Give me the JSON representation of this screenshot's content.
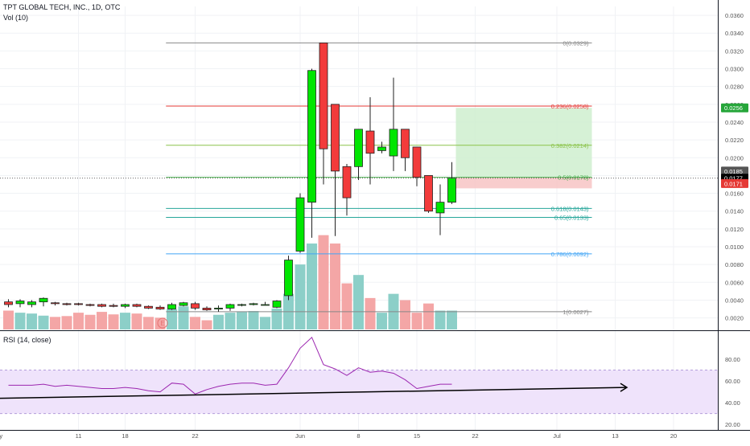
{
  "header": {
    "symbol_line": "TPT GLOBAL TECH, INC., 1D, OTC",
    "volume_indicator": "Vol (10)",
    "rsi_indicator": "RSI (14, close)"
  },
  "colors": {
    "up": "#00e600",
    "down": "#f23b3b",
    "volume_up": "#8ccfc8",
    "volume_down": "#f4a6a6",
    "rsi_line": "#9c27b0",
    "rsi_band": "#efe3fb",
    "fib_0": "#888888",
    "fib_236": "#e53935",
    "fib_382": "#8bc34a",
    "fib_5": "#4caf50",
    "fib_618": "#26a69a",
    "fib_65": "#26a69a",
    "fib_786": "#42a5f5",
    "fib_1": "#888888",
    "target_zone": "#cfeecf",
    "stop_zone": "#f7c4c4",
    "badge_green": "#26a63a",
    "badge_black": "#000000",
    "badge_red": "#e53935",
    "badge_gray": "#555555"
  },
  "chart_data": [
    {
      "type": "candlestick",
      "candles": [
        {
          "day": 0,
          "o": 0.0038,
          "h": 0.0041,
          "l": 0.0032,
          "c": 0.0035
        },
        {
          "day": 1,
          "o": 0.0036,
          "h": 0.0041,
          "l": 0.0032,
          "c": 0.0039
        },
        {
          "day": 2,
          "o": 0.0035,
          "h": 0.004,
          "l": 0.0032,
          "c": 0.0038
        },
        {
          "day": 3,
          "o": 0.0038,
          "h": 0.0043,
          "l": 0.0033,
          "c": 0.0042
        },
        {
          "day": 4,
          "o": 0.0037,
          "h": 0.0038,
          "l": 0.0034,
          "c": 0.0036
        },
        {
          "day": 5,
          "o": 0.0036,
          "h": 0.0037,
          "l": 0.0034,
          "c": 0.0035
        },
        {
          "day": 6,
          "o": 0.0036,
          "h": 0.0037,
          "l": 0.0034,
          "c": 0.0035
        },
        {
          "day": 7,
          "o": 0.0035,
          "h": 0.0036,
          "l": 0.0033,
          "c": 0.0034
        },
        {
          "day": 8,
          "o": 0.0035,
          "h": 0.0036,
          "l": 0.0032,
          "c": 0.0033
        },
        {
          "day": 9,
          "o": 0.0034,
          "h": 0.0036,
          "l": 0.0032,
          "c": 0.0033
        },
        {
          "day": 10,
          "o": 0.0033,
          "h": 0.0036,
          "l": 0.0031,
          "c": 0.0035
        },
        {
          "day": 11,
          "o": 0.0035,
          "h": 0.0036,
          "l": 0.0032,
          "c": 0.0033
        },
        {
          "day": 12,
          "o": 0.0033,
          "h": 0.0034,
          "l": 0.003,
          "c": 0.0031
        },
        {
          "day": 13,
          "o": 0.0032,
          "h": 0.0034,
          "l": 0.0029,
          "c": 0.003
        },
        {
          "day": 14,
          "o": 0.003,
          "h": 0.0037,
          "l": 0.0029,
          "c": 0.0035
        },
        {
          "day": 15,
          "o": 0.0034,
          "h": 0.0038,
          "l": 0.0033,
          "c": 0.0037
        },
        {
          "day": 16,
          "o": 0.0036,
          "h": 0.0038,
          "l": 0.0029,
          "c": 0.0031
        },
        {
          "day": 17,
          "o": 0.0031,
          "h": 0.0033,
          "l": 0.0028,
          "c": 0.0029
        },
        {
          "day": 18,
          "o": 0.003,
          "h": 0.0034,
          "l": 0.0027,
          "c": 0.0031
        },
        {
          "day": 19,
          "o": 0.0031,
          "h": 0.0036,
          "l": 0.0028,
          "c": 0.0035
        },
        {
          "day": 20,
          "o": 0.0035,
          "h": 0.0036,
          "l": 0.0033,
          "c": 0.0035
        },
        {
          "day": 21,
          "o": 0.0035,
          "h": 0.0037,
          "l": 0.0034,
          "c": 0.0036
        },
        {
          "day": 22,
          "o": 0.0035,
          "h": 0.0038,
          "l": 0.0034,
          "c": 0.0035
        },
        {
          "day": 23,
          "o": 0.0032,
          "h": 0.004,
          "l": 0.0031,
          "c": 0.0039
        },
        {
          "day": 24,
          "o": 0.0045,
          "h": 0.009,
          "l": 0.004,
          "c": 0.0085
        },
        {
          "day": 25,
          "o": 0.0095,
          "h": 0.016,
          "l": 0.0093,
          "c": 0.0155
        },
        {
          "day": 26,
          "o": 0.015,
          "h": 0.03,
          "l": 0.011,
          "c": 0.0298
        },
        {
          "day": 27,
          "o": 0.0329,
          "h": 0.0329,
          "l": 0.017,
          "c": 0.021
        },
        {
          "day": 28,
          "o": 0.026,
          "h": 0.026,
          "l": 0.0112,
          "c": 0.0185
        },
        {
          "day": 29,
          "o": 0.019,
          "h": 0.0193,
          "l": 0.0135,
          "c": 0.0155
        },
        {
          "day": 30,
          "o": 0.019,
          "h": 0.0232,
          "l": 0.0175,
          "c": 0.0232
        },
        {
          "day": 31,
          "o": 0.023,
          "h": 0.0268,
          "l": 0.017,
          "c": 0.0205
        },
        {
          "day": 32,
          "o": 0.0208,
          "h": 0.0218,
          "l": 0.0205,
          "c": 0.0212
        },
        {
          "day": 33,
          "o": 0.0202,
          "h": 0.029,
          "l": 0.0185,
          "c": 0.0232
        },
        {
          "day": 34,
          "o": 0.0232,
          "h": 0.0232,
          "l": 0.0185,
          "c": 0.02
        },
        {
          "day": 35,
          "o": 0.0212,
          "h": 0.0212,
          "l": 0.0168,
          "c": 0.0178
        },
        {
          "day": 36,
          "o": 0.018,
          "h": 0.018,
          "l": 0.0138,
          "c": 0.014
        },
        {
          "day": 37,
          "o": 0.0138,
          "h": 0.017,
          "l": 0.0113,
          "c": 0.015
        },
        {
          "day": 38,
          "o": 0.015,
          "h": 0.0195,
          "l": 0.0148,
          "c": 0.0177
        }
      ],
      "ylim": [
        0.0007,
        0.037
      ],
      "y_ticks": [
        "0.0020",
        "0.0040",
        "0.0060",
        "0.0080",
        "0.0100",
        "0.0120",
        "0.0140",
        "0.0160",
        "0.0180",
        "0.0200",
        "0.0220",
        "0.0240",
        "0.0260",
        "0.0280",
        "0.0300",
        "0.0320",
        "0.0340",
        "0.0360"
      ],
      "x_ticks": [
        {
          "day": -1,
          "label": "May"
        },
        {
          "day": 6,
          "label": "11"
        },
        {
          "day": 10,
          "label": "18"
        },
        {
          "day": 16,
          "label": "22"
        },
        {
          "day": 25,
          "label": "Jun"
        },
        {
          "day": 30,
          "label": "8"
        },
        {
          "day": 35,
          "label": "15"
        },
        {
          "day": 40,
          "label": "22"
        },
        {
          "day": 47,
          "label": "Jul"
        },
        {
          "day": 52,
          "label": "13"
        },
        {
          "day": 57,
          "label": "20"
        }
      ],
      "fib_levels": [
        {
          "label": "0(0.0329)",
          "value": 0.0329,
          "color_key": "fib_0"
        },
        {
          "label": "0.236(0.0258)",
          "value": 0.0258,
          "color_key": "fib_236"
        },
        {
          "label": "0.382(0.0214)",
          "value": 0.0214,
          "color_key": "fib_382"
        },
        {
          "label": "0.5(0.0178)",
          "value": 0.0178,
          "color_key": "fib_5"
        },
        {
          "label": "0.618(0.0143)",
          "value": 0.0143,
          "color_key": "fib_618"
        },
        {
          "label": "0.65(0.0133)",
          "value": 0.0133,
          "color_key": "fib_65"
        },
        {
          "label": "0.786(0.0092)",
          "value": 0.0092,
          "color_key": "fib_786"
        },
        {
          "label": "1(0.0027)",
          "value": 0.0027,
          "color_key": "fib_1"
        }
      ],
      "position": {
        "entry": 0.0178,
        "target": 0.0256,
        "stop": 0.0171,
        "start_day": 38,
        "end_day": 50
      },
      "price_badges": [
        {
          "value": 0.0256,
          "label": "0.0256",
          "color_key": "badge_green"
        },
        {
          "value": 0.0185,
          "label": "0.0185",
          "color_key": "badge_gray"
        },
        {
          "value": 0.0177,
          "label": "0.0177",
          "color_key": "badge_black"
        },
        {
          "value": 0.0171,
          "label": "0.0171",
          "color_key": "badge_red"
        }
      ],
      "volume": [
        0.45,
        0.4,
        0.38,
        0.33,
        0.3,
        0.32,
        0.4,
        0.35,
        0.42,
        0.36,
        0.4,
        0.38,
        0.3,
        0.28,
        0.48,
        0.55,
        0.3,
        0.22,
        0.35,
        0.4,
        0.42,
        0.44,
        0.3,
        0.5,
        0.85,
        1.55,
        2.05,
        2.25,
        2.05,
        1.1,
        1.3,
        0.75,
        0.4,
        0.85,
        0.7,
        0.4,
        0.62,
        0.45,
        0.45
      ],
      "vol_event_label": "E"
    },
    {
      "type": "line",
      "title": "RSI (14, close)",
      "ylim": [
        15,
        105
      ],
      "y_ticks": [
        "20.00",
        "40.00",
        "60.00",
        "80.00"
      ],
      "band": [
        30,
        70
      ],
      "values": [
        56,
        56,
        56,
        57,
        55,
        56,
        55,
        54,
        53,
        53,
        54,
        53,
        51,
        50,
        58,
        57,
        48,
        52,
        55,
        57,
        58,
        58,
        56,
        57,
        72,
        90,
        100,
        75,
        71,
        65,
        72,
        68,
        69,
        67,
        61,
        53,
        55,
        57,
        57
      ],
      "trend_arrow": {
        "from": [
          -1,
          44
        ],
        "to": [
          53,
          54
        ]
      }
    }
  ]
}
